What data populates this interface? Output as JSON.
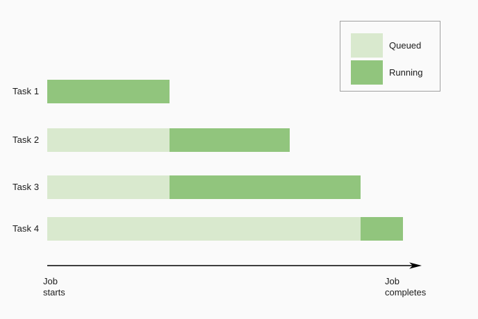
{
  "chart_data": {
    "type": "bar",
    "variant": "stacked-horizontal-gantt",
    "title": "",
    "categories": [
      "Task 1",
      "Task 2",
      "Task 3",
      "Task 4"
    ],
    "xlim": [
      0,
      100
    ],
    "grid": false,
    "background": "#fafafa",
    "legend": {
      "position": "upper-right",
      "border_color": "#a0a0a0",
      "entries": [
        {
          "label": "Queued",
          "color": "#d9e9ce"
        },
        {
          "label": "Running",
          "color": "#91c57d"
        }
      ]
    },
    "axis": {
      "start_label": "Job\nstarts",
      "end_label": "Job\ncompletes",
      "color": "#000000",
      "arrowhead": true
    },
    "tasks": [
      {
        "label": "Task 1",
        "segments": [
          {
            "state": "Queued",
            "start": 0,
            "end": 0
          },
          {
            "state": "Running",
            "start": 0,
            "end": 34.3
          }
        ]
      },
      {
        "label": "Task 2",
        "segments": [
          {
            "state": "Queued",
            "start": 0,
            "end": 34.3
          },
          {
            "state": "Running",
            "start": 34.3,
            "end": 68.2
          }
        ]
      },
      {
        "label": "Task 3",
        "segments": [
          {
            "state": "Queued",
            "start": 0,
            "end": 34.3
          },
          {
            "state": "Running",
            "start": 34.3,
            "end": 88.1
          }
        ]
      },
      {
        "label": "Task 4",
        "segments": [
          {
            "state": "Queued",
            "start": 0,
            "end": 88.1
          },
          {
            "state": "Running",
            "start": 88.1,
            "end": 100
          }
        ]
      }
    ]
  }
}
